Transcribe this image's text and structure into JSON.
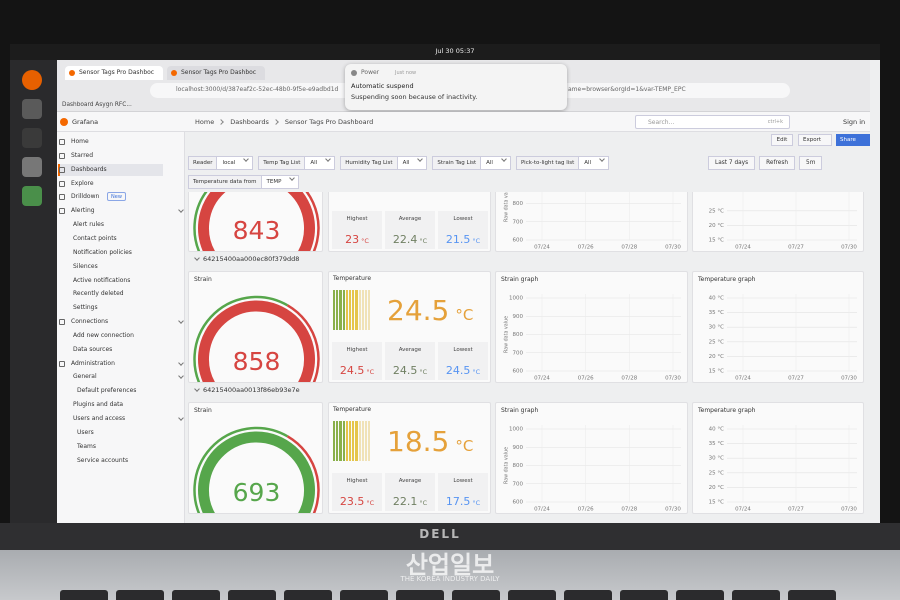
{
  "system_bar": {
    "clock": "Jul 30 05:37"
  },
  "browser": {
    "tabs": [
      "Sensor Tags Pro Dashboc",
      "Sensor Tags Pro Dashboc"
    ],
    "url": "localhost:3000/d/387eaf2c-52ec-48b0-9f5e-e9adbd1d",
    "url_tail": "ame=browser&orgId=1&var-TEMP_EPC",
    "bookmark": "Dashboard Asygn RFC..."
  },
  "notification": {
    "app": "Power",
    "time": "Just now",
    "title": "Automatic suspend",
    "body": "Suspending soon because of inactivity."
  },
  "header": {
    "brand": "Grafana",
    "breadcrumb": [
      "Home",
      "Dashboards",
      "Sensor Tags Pro Dashboard"
    ],
    "search": "Search...",
    "shortcut": "ctrl+k",
    "sign_in": "Sign in"
  },
  "toolbar": {
    "edit": "Edit",
    "export": "Export",
    "share": "Share"
  },
  "sidebar": {
    "items": [
      {
        "label": "Home"
      },
      {
        "label": "Starred"
      },
      {
        "label": "Dashboards",
        "active": true
      },
      {
        "label": "Explore"
      },
      {
        "label": "Drilldown",
        "badge": "New"
      },
      {
        "label": "Alerting",
        "children": [
          {
            "label": "Alert rules"
          },
          {
            "label": "Contact points"
          },
          {
            "label": "Notification policies"
          },
          {
            "label": "Silences"
          },
          {
            "label": "Active notifications"
          },
          {
            "label": "Recently deleted"
          },
          {
            "label": "Settings"
          }
        ]
      },
      {
        "label": "Connections",
        "children": [
          {
            "label": "Add new connection"
          },
          {
            "label": "Data sources"
          }
        ]
      },
      {
        "label": "Administration",
        "children": [
          {
            "label": "General",
            "children": [
              {
                "label": "Default preferences"
              }
            ]
          },
          {
            "label": "Plugins and data"
          },
          {
            "label": "Users and access",
            "children": [
              {
                "label": "Users"
              },
              {
                "label": "Teams"
              },
              {
                "label": "Service accounts"
              }
            ]
          }
        ]
      }
    ]
  },
  "variables": [
    {
      "label": "Reader",
      "value": "local"
    },
    {
      "label": "Temp Tag List",
      "value": "All"
    },
    {
      "label": "Humidity Tag List",
      "value": "All"
    },
    {
      "label": "Strain Tag List",
      "value": "All"
    },
    {
      "label": "Pick-to-light tag list",
      "value": "All"
    },
    {
      "label": "Temperature data from",
      "value": "TEMP"
    }
  ],
  "time_controls": {
    "range": "Last 7 days",
    "refresh": "Refresh",
    "interval": "5m"
  },
  "rows": [
    {
      "strain": {
        "value": 843,
        "color": "#d64541"
      },
      "temperature": {
        "stats": [
          {
            "label": "Highest",
            "value": 23,
            "unit": "°C"
          },
          {
            "label": "Average",
            "value": 22.4,
            "unit": "°C"
          },
          {
            "label": "Lowest",
            "value": 21.5,
            "unit": "°C"
          }
        ]
      },
      "strain_graph": {
        "ylabel": "Raw data value",
        "ylim": [
          600,
          1000
        ],
        "yticks": [
          800,
          700,
          600
        ],
        "xticks": [
          "07/24",
          "07/26",
          "07/28",
          "07/30"
        ]
      },
      "temp_graph": {
        "ylim": [
          15,
          40
        ],
        "yticks": [
          {
            "value": 25,
            "label": "25 °C"
          },
          {
            "value": 20,
            "label": "20 °C"
          },
          {
            "value": 15,
            "label": "15 °C"
          }
        ],
        "xticks": [
          "07/24",
          "07/27",
          "07/30"
        ]
      }
    },
    {
      "title": "64215400aa000ec80f379dd8",
      "strain": {
        "title": "Strain",
        "value": 858,
        "color": "#d64541"
      },
      "temperature": {
        "title": "Temperature",
        "value": 24.5,
        "unit": "°C",
        "color": "#e5a13a",
        "stats": [
          {
            "label": "Highest",
            "value": 24.5,
            "unit": "°C"
          },
          {
            "label": "Average",
            "value": 24.5,
            "unit": "°C"
          },
          {
            "label": "Lowest",
            "value": 24.5,
            "unit": "°C"
          }
        ]
      },
      "strain_graph": {
        "title": "Strain graph",
        "ylabel": "Raw data value",
        "ylim": [
          600,
          1000
        ],
        "yticks": [
          1000,
          900,
          800,
          700,
          600
        ],
        "xticks": [
          "07/24",
          "07/26",
          "07/28",
          "07/30"
        ]
      },
      "temp_graph": {
        "title": "Temperature graph",
        "ylim": [
          15,
          40
        ],
        "yticks": [
          {
            "value": 40,
            "label": "40 °C"
          },
          {
            "value": 35,
            "label": "35 °C"
          },
          {
            "value": 30,
            "label": "30 °C"
          },
          {
            "value": 25,
            "label": "25 °C"
          },
          {
            "value": 20,
            "label": "20 °C"
          },
          {
            "value": 15,
            "label": "15 °C"
          }
        ],
        "xticks": [
          "07/24",
          "07/27",
          "07/30"
        ]
      }
    },
    {
      "title": "64215400aa0013f86eb93e7e",
      "strain": {
        "title": "Strain",
        "value": 693,
        "color": "#56a64b"
      },
      "temperature": {
        "title": "Temperature",
        "value": 18.5,
        "unit": "°C",
        "color": "#e5a13a",
        "stats": [
          {
            "label": "Highest",
            "value": 23.5,
            "unit": "°C"
          },
          {
            "label": "Average",
            "value": 22.1,
            "unit": "°C"
          },
          {
            "label": "Lowest",
            "value": 17.5,
            "unit": "°C"
          }
        ]
      },
      "strain_graph": {
        "title": "Strain graph",
        "ylabel": "Raw data value",
        "ylim": [
          600,
          1000
        ],
        "yticks": [
          1000,
          900,
          800,
          700,
          600
        ],
        "xticks": [
          "07/24",
          "07/26",
          "07/28",
          "07/30"
        ]
      },
      "temp_graph": {
        "title": "Temperature graph",
        "ylim": [
          15,
          40
        ],
        "yticks": [
          {
            "value": 40,
            "label": "40 °C"
          },
          {
            "value": 35,
            "label": "35 °C"
          },
          {
            "value": 30,
            "label": "30 °C"
          },
          {
            "value": 25,
            "label": "25 °C"
          },
          {
            "value": 20,
            "label": "20 °C"
          },
          {
            "value": 15,
            "label": "15 °C"
          }
        ],
        "xticks": [
          "07/24",
          "07/27",
          "07/30"
        ]
      }
    }
  ],
  "hardware": {
    "brand": "DELL"
  },
  "watermark": {
    "title": "산업일보",
    "subtitle": "THE KOREA INDUSTRY DAILY"
  }
}
